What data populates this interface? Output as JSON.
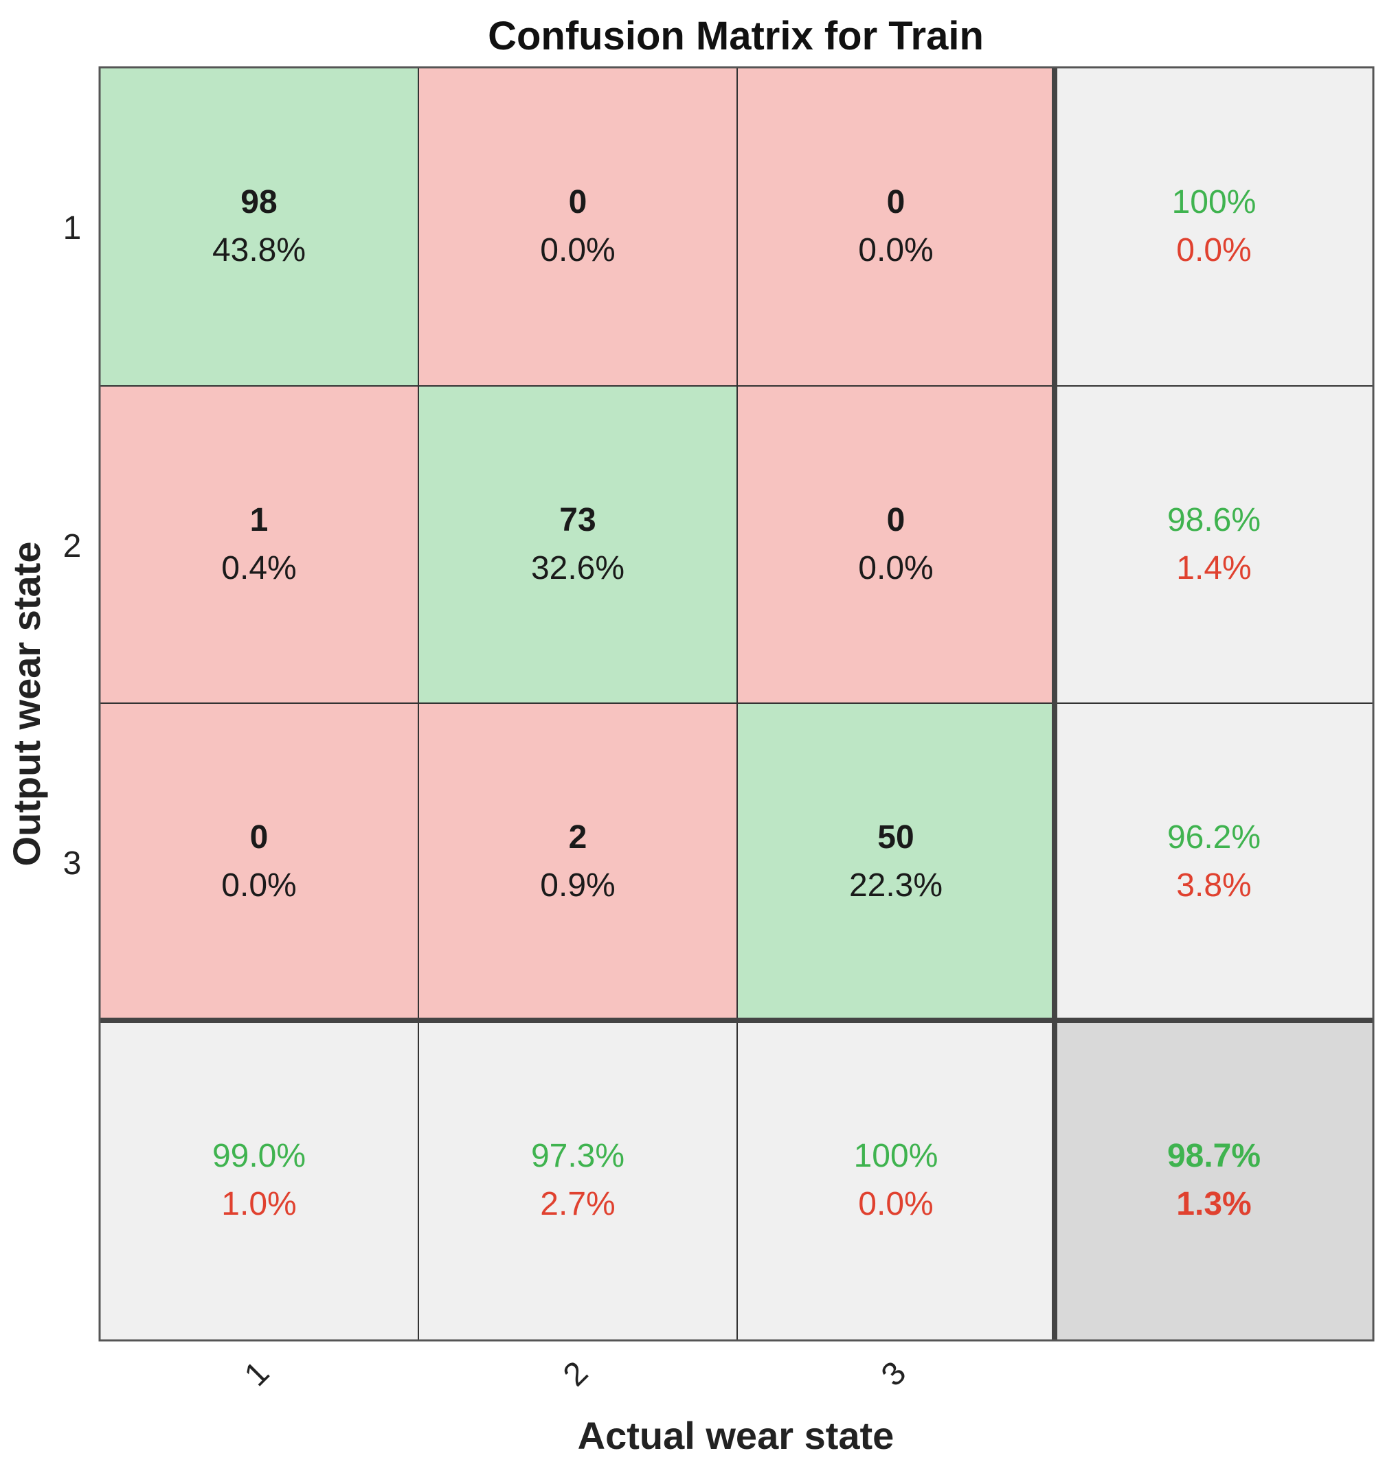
{
  "chart_data": {
    "type": "heatmap",
    "title": "Confusion Matrix for Train",
    "xlabel": "Actual wear state",
    "ylabel": "Output wear state",
    "classes": [
      "1",
      "2",
      "3"
    ],
    "x_tick_labels": [
      "1",
      "2",
      "3"
    ],
    "y_tick_labels": [
      "1",
      "2",
      "3"
    ],
    "cells": [
      [
        {
          "count": "98",
          "percent": "43.8%"
        },
        {
          "count": "0",
          "percent": "0.0%"
        },
        {
          "count": "0",
          "percent": "0.0%"
        }
      ],
      [
        {
          "count": "1",
          "percent": "0.4%"
        },
        {
          "count": "73",
          "percent": "32.6%"
        },
        {
          "count": "0",
          "percent": "0.0%"
        }
      ],
      [
        {
          "count": "0",
          "percent": "0.0%"
        },
        {
          "count": "2",
          "percent": "0.9%"
        },
        {
          "count": "50",
          "percent": "22.3%"
        }
      ]
    ],
    "row_summary": [
      {
        "correct": "100%",
        "incorrect": "0.0%"
      },
      {
        "correct": "98.6%",
        "incorrect": "1.4%"
      },
      {
        "correct": "96.2%",
        "incorrect": "3.8%"
      }
    ],
    "column_summary": [
      {
        "correct": "99.0%",
        "incorrect": "1.0%"
      },
      {
        "correct": "97.3%",
        "incorrect": "2.7%"
      },
      {
        "correct": "100%",
        "incorrect": "0.0%"
      }
    ],
    "overall": {
      "correct": "98.7%",
      "incorrect": "1.3%"
    },
    "colors": {
      "correct_cell": "#bde6c5",
      "incorrect_cell": "#f7c3c0",
      "summary_cell": "#f0f0f0",
      "overall_cell": "#d9d9d9",
      "correct_text": "#3fb34f",
      "incorrect_text": "#e0412f",
      "grid_line": "#333333",
      "text": "#1a1a1a"
    }
  }
}
